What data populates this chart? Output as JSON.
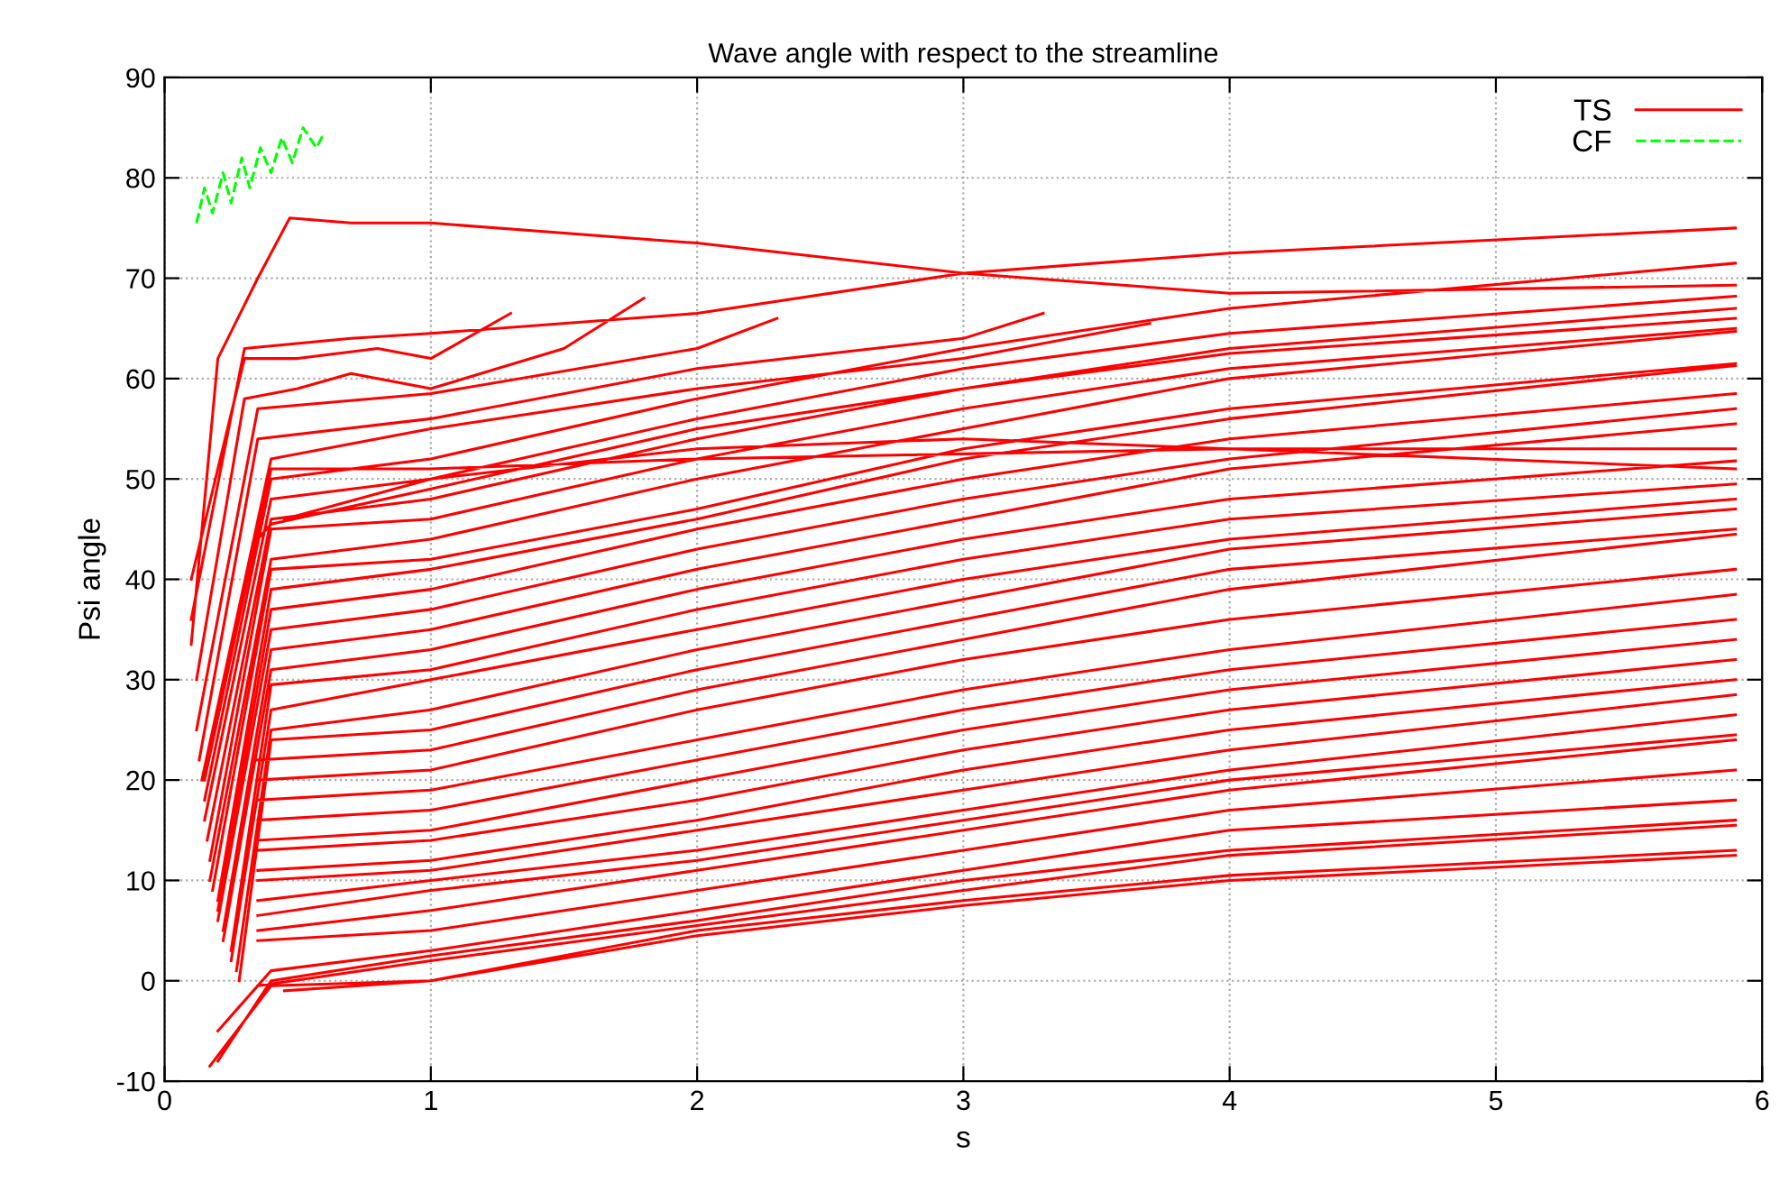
{
  "chart_data": {
    "type": "line",
    "title": "Wave angle with respect to the streamline",
    "xlabel": "s",
    "ylabel": "Psi angle",
    "xlim": [
      0,
      6
    ],
    "xticks": [
      0,
      1,
      2,
      3,
      4,
      5,
      6
    ],
    "ylim": [
      -10,
      90
    ],
    "yticks": [
      -10,
      0,
      10,
      20,
      30,
      40,
      50,
      60,
      70,
      80,
      90
    ],
    "grid": true,
    "legend": "top right",
    "marker": "none",
    "series": [
      {
        "name": "TS",
        "color": "#ff0000",
        "line_style": "solid",
        "x": [
          0.1,
          0.2,
          0.35,
          0.47,
          0.7,
          1.0,
          2,
          3,
          4,
          5.9,
          null,
          0.1,
          0.3,
          0.7,
          1.0,
          2,
          3,
          4,
          5.9,
          null,
          0.1,
          0.3,
          0.5,
          0.8,
          1.0,
          1.3,
          null,
          0.12,
          0.3,
          0.5,
          0.7,
          1.0,
          1.5,
          1.8,
          null,
          0.12,
          0.35,
          1,
          2,
          2.3,
          null,
          0.13,
          0.35,
          1,
          2,
          3,
          3.3,
          null,
          0.14,
          0.4,
          1,
          2,
          3,
          3.7,
          null,
          0.15,
          0.4,
          1,
          2,
          3,
          4,
          5.9,
          null,
          0.15,
          0.4,
          1,
          2,
          3,
          4,
          5.9,
          null,
          0.16,
          0.4,
          1,
          2,
          3,
          4,
          5.9,
          null,
          0.35,
          0.4,
          1,
          2,
          3,
          4,
          5.9,
          null,
          0.17,
          0.4,
          1,
          2,
          3,
          4,
          5.9,
          null,
          0.17,
          0.4,
          1,
          2,
          3,
          4,
          5.9,
          null,
          0.18,
          0.4,
          1,
          2,
          3,
          4,
          5.9,
          null,
          0.2,
          0.4,
          1,
          2,
          3,
          4,
          5.9,
          null,
          0.2,
          0.4,
          1,
          2,
          3,
          4,
          5.9,
          null,
          0.2,
          0.4,
          1,
          2,
          3,
          4,
          5.9,
          null,
          0.22,
          0.4,
          1,
          2,
          3,
          4,
          5.9,
          null,
          0.15,
          0.4,
          1,
          2,
          3,
          4,
          5.9,
          null,
          0.45,
          1,
          2,
          3,
          4,
          5.9,
          null,
          0.22,
          0.4,
          1,
          2,
          3,
          4,
          5.9,
          null,
          0.25,
          0.4,
          1,
          2,
          3,
          4,
          5.9,
          null,
          0.25,
          0.4,
          1,
          2,
          3,
          4,
          5.9,
          null,
          0.27,
          0.4,
          1,
          2,
          3,
          4,
          5.9,
          null,
          0.28,
          0.4,
          1,
          2,
          3,
          4,
          5.9,
          null,
          0.35,
          1,
          2,
          3,
          4,
          5.9,
          null,
          0.35,
          1,
          2,
          3,
          4,
          5.9,
          null,
          0.35,
          1,
          2,
          3,
          4,
          5.9,
          null,
          0.35,
          1,
          2,
          3,
          4,
          5.9,
          null,
          0.35,
          1,
          2,
          3,
          4,
          5.9,
          null,
          0.35,
          1,
          2,
          3,
          4,
          5.9,
          null,
          0.35,
          1,
          2,
          3,
          4,
          5.9,
          null,
          0.35,
          1,
          2,
          3,
          4,
          5.9,
          null,
          0.35,
          1,
          2,
          3,
          4,
          5.9,
          null,
          0.35,
          1,
          2,
          3,
          4,
          5.9,
          null,
          0.35,
          1,
          2,
          3,
          4,
          5.9,
          null,
          0.35,
          1,
          2,
          3,
          4,
          5.9,
          null,
          0.2,
          0.4,
          1,
          2,
          3,
          4,
          5.9,
          null,
          0.2,
          0.4,
          1,
          2,
          3,
          4,
          5.9,
          null,
          0.35,
          1,
          2,
          3,
          4,
          5.9,
          null,
          0.17,
          0.4,
          1,
          2,
          3,
          4,
          5.9,
          null,
          0.45,
          1,
          2,
          3,
          4,
          5.9
        ],
        "values": [
          33.5,
          62,
          70,
          76,
          75.5,
          75.5,
          73.5,
          70.5,
          68.5,
          69.3,
          null,
          36,
          63,
          64,
          64.5,
          66.5,
          70.5,
          72.5,
          75,
          null,
          40,
          62,
          62,
          63,
          62,
          66.5,
          null,
          30,
          58,
          59,
          60.5,
          59,
          63,
          68,
          null,
          25,
          57,
          58.5,
          63,
          66,
          null,
          22,
          54,
          56,
          61,
          64,
          66.5,
          null,
          20,
          52,
          55,
          59,
          62,
          65.5,
          null,
          18,
          50,
          52,
          58,
          63,
          67,
          71.5,
          null,
          16,
          48,
          50,
          56,
          61,
          64.5,
          68.2,
          null,
          14,
          46,
          48,
          54,
          59,
          63,
          67,
          null,
          44,
          45.5,
          49,
          55,
          59,
          62.5,
          66,
          null,
          12,
          45,
          46,
          52,
          57,
          61,
          65,
          null,
          10,
          42,
          44,
          50,
          55,
          60,
          64.7,
          null,
          9,
          41,
          42,
          47,
          53,
          57,
          61.5,
          null,
          8,
          39,
          41,
          46,
          52,
          56,
          61.3,
          null,
          7,
          37,
          39,
          45,
          50,
          54,
          58.5,
          null,
          6,
          35,
          37,
          43,
          48,
          52,
          57,
          null,
          5,
          33,
          35,
          41,
          46,
          51,
          55.5,
          null,
          20,
          51,
          51,
          52,
          52.5,
          53,
          53,
          null,
          46,
          50,
          53,
          54,
          53,
          51,
          null,
          4,
          31,
          33,
          39,
          44,
          48,
          51.8,
          null,
          3,
          29.5,
          31,
          37,
          42,
          46,
          49.5,
          null,
          2,
          27,
          30,
          35,
          40,
          44,
          48,
          null,
          1,
          25,
          27,
          33,
          38,
          43,
          47,
          null,
          0,
          24,
          25,
          31,
          36,
          41,
          45,
          null,
          22,
          23,
          29,
          34,
          39,
          44.5,
          null,
          20,
          21,
          27,
          32,
          36,
          41,
          null,
          18,
          19,
          24,
          29,
          33,
          38.5,
          null,
          16,
          17,
          22,
          27,
          31,
          36,
          null,
          14,
          15,
          20,
          25,
          29,
          34,
          null,
          13,
          14,
          18,
          23,
          27,
          32,
          null,
          11,
          12,
          16,
          21,
          25,
          30,
          null,
          10,
          11,
          15,
          19,
          23,
          28.5,
          null,
          8,
          10,
          13,
          17,
          21,
          26.5,
          null,
          6.5,
          9,
          12,
          16,
          20,
          24.5,
          null,
          5,
          7,
          11,
          15,
          19,
          24,
          null,
          4,
          5,
          9,
          13,
          17,
          21,
          null,
          -5,
          1,
          3,
          7,
          11,
          15,
          18,
          null,
          -8,
          0,
          2.5,
          6,
          10,
          13,
          16,
          null,
          -0.5,
          2,
          5.5,
          9,
          12.5,
          15.5,
          null,
          -8.5,
          -0.5,
          0,
          5,
          8,
          10.5,
          13,
          null,
          -1,
          0,
          4.5,
          7.5,
          10,
          12.5
        ]
      },
      {
        "name": "CF",
        "color": "#00ff00",
        "line_style": "dashed",
        "x": [
          0.12,
          0.15,
          0.18,
          0.22,
          0.25,
          0.29,
          0.32,
          0.36,
          0.4,
          0.44,
          0.48,
          0.52,
          0.57,
          0.6
        ],
        "values": [
          75.5,
          79,
          76.5,
          80.5,
          77.5,
          82,
          79,
          83,
          80.5,
          84,
          81.5,
          85,
          83,
          84.5
        ]
      }
    ]
  }
}
